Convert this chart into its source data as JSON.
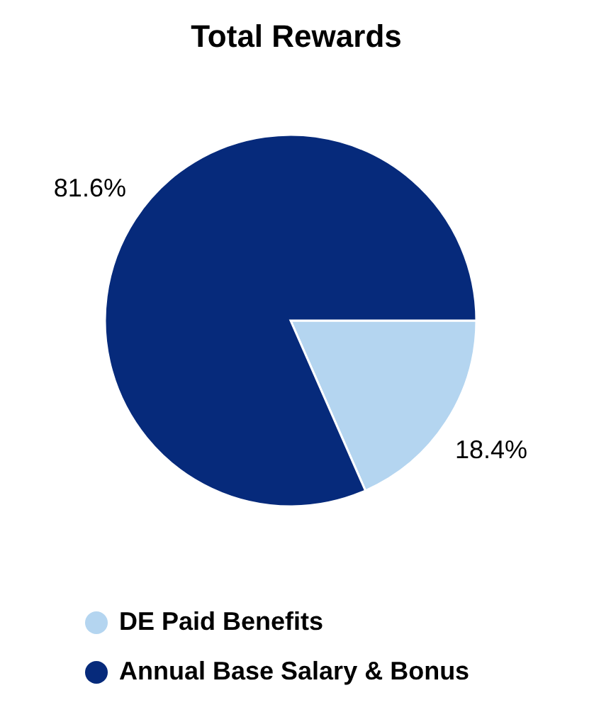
{
  "chart_data": {
    "type": "pie",
    "title": "Total Rewards",
    "categories": [
      "DE Paid Benefits",
      "Annual Base Salary & Bonus"
    ],
    "values": [
      18.4,
      81.6
    ],
    "colors": [
      "#b4d5f0",
      "#062a7b"
    ],
    "value_labels": [
      "18.4%",
      "81.6%"
    ],
    "legend": "bottom"
  }
}
